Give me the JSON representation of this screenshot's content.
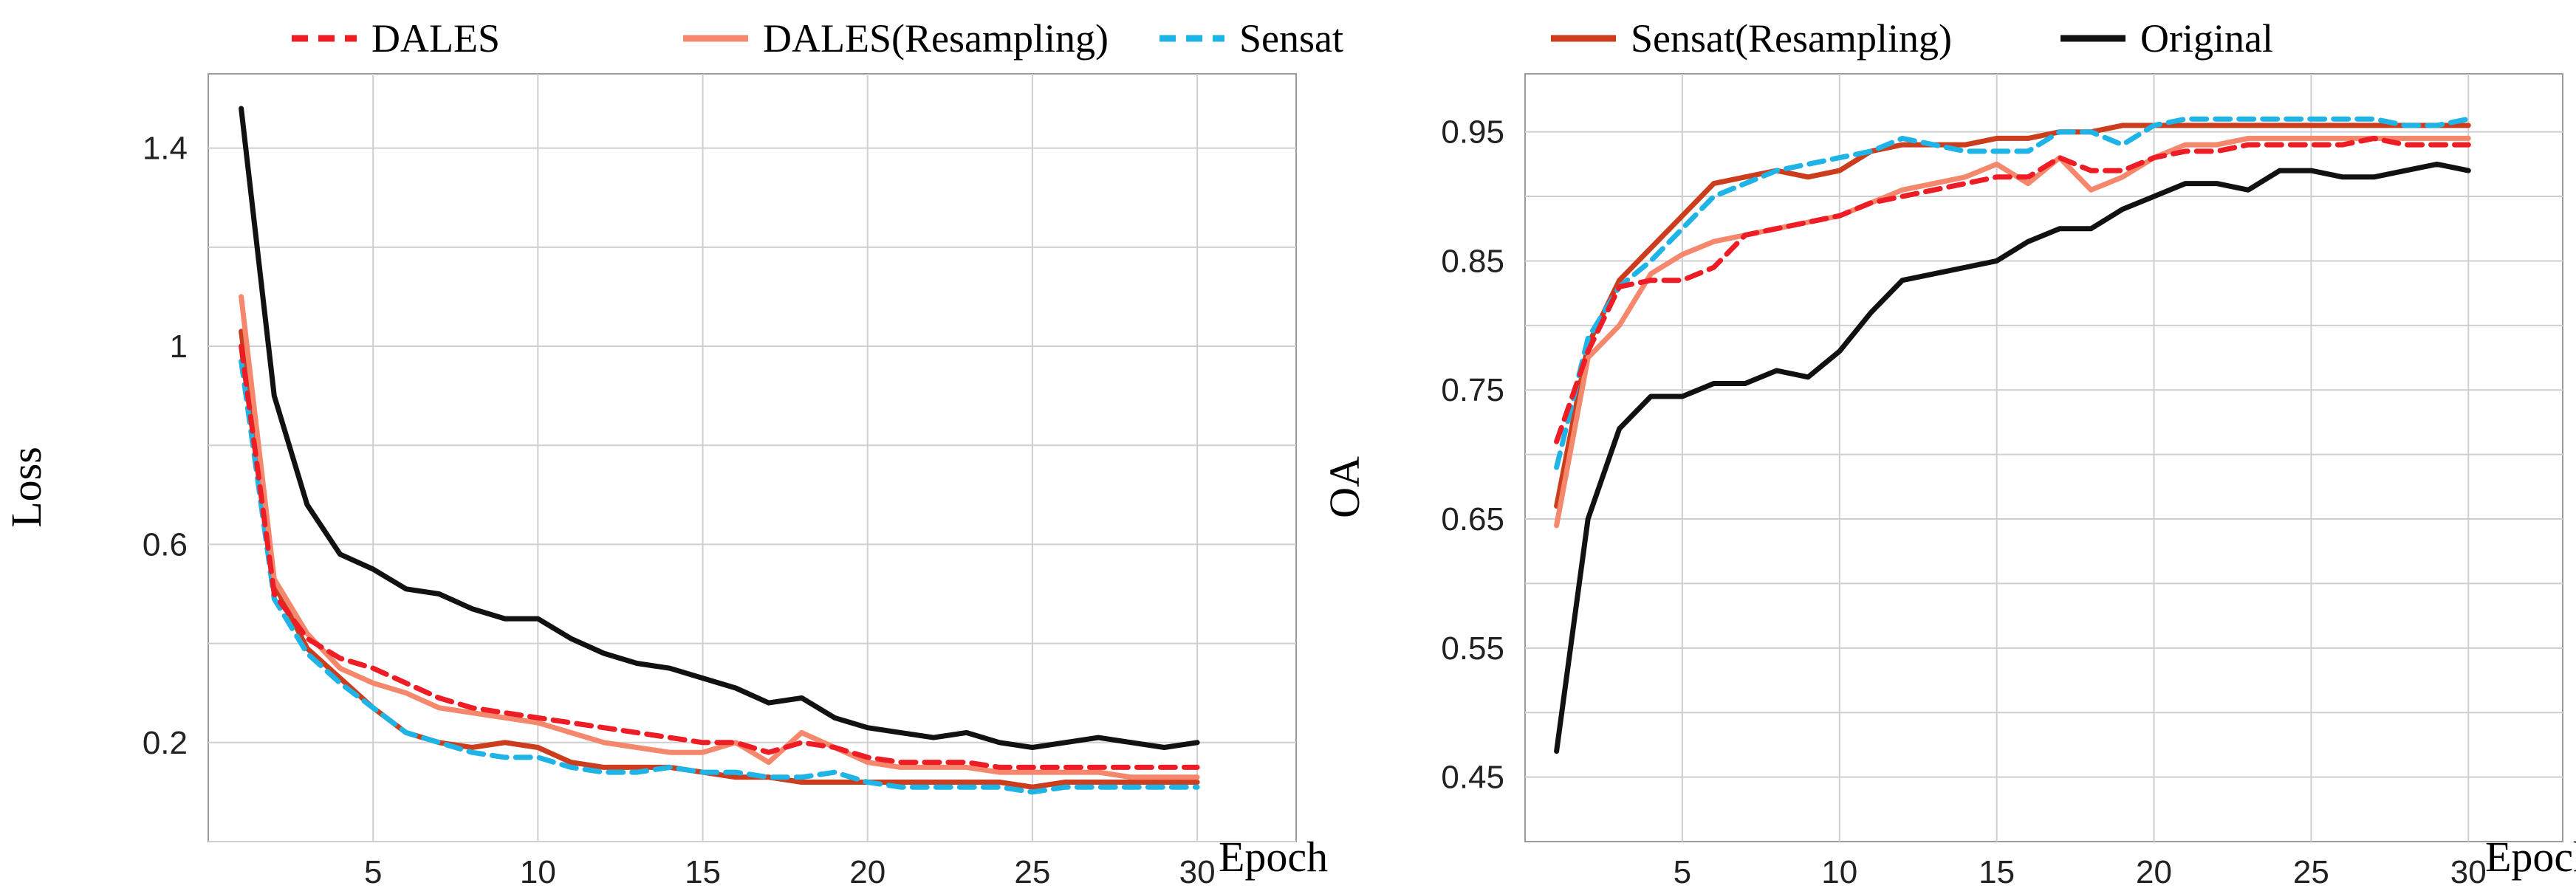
{
  "legend": [
    {
      "name": "DALES",
      "color": "#ee1c25",
      "dash": true
    },
    {
      "name": "DALES(Resampling)",
      "color": "#f4876c",
      "dash": false
    },
    {
      "name": "Sensat",
      "color": "#1fb4e6",
      "dash": true
    },
    {
      "name": "Sensat(Resampling)",
      "color": "#cc3d1d",
      "dash": false
    },
    {
      "name": "Original",
      "color": "#111111",
      "dash": false
    }
  ],
  "chart_data": [
    {
      "type": "line",
      "id": "loss",
      "ylabel": "Loss",
      "xlabel": "Epoch",
      "xlim": [
        0,
        33
      ],
      "ylim": [
        0,
        1.55
      ],
      "xticks": [
        5,
        10,
        15,
        20,
        25,
        30
      ],
      "xtick_labels": [
        "5",
        "10",
        "15",
        "20",
        "25",
        "30"
      ],
      "yticks": [
        0.2,
        0.6,
        1.0,
        1.4
      ],
      "ytick_labels": [
        "0.2",
        "0.6",
        "1",
        "1.4"
      ],
      "ygrid": [
        0.0,
        0.2,
        0.4,
        0.6,
        0.8,
        1.0,
        1.2,
        1.4
      ],
      "x": [
        1,
        2,
        3,
        4,
        5,
        6,
        7,
        8,
        9,
        10,
        11,
        12,
        13,
        14,
        15,
        16,
        17,
        18,
        19,
        20,
        21,
        22,
        23,
        24,
        25,
        26,
        27,
        28,
        29,
        30
      ],
      "series": [
        {
          "name": "Original",
          "values": [
            1.48,
            0.9,
            0.68,
            0.58,
            0.55,
            0.51,
            0.5,
            0.47,
            0.45,
            0.45,
            0.41,
            0.38,
            0.36,
            0.35,
            0.33,
            0.31,
            0.28,
            0.29,
            0.25,
            0.23,
            0.22,
            0.21,
            0.22,
            0.2,
            0.19,
            0.2,
            0.21,
            0.2,
            0.19,
            0.2
          ]
        },
        {
          "name": "DALES",
          "values": [
            1.0,
            0.5,
            0.41,
            0.37,
            0.35,
            0.32,
            0.29,
            0.27,
            0.26,
            0.25,
            0.24,
            0.23,
            0.22,
            0.21,
            0.2,
            0.2,
            0.18,
            0.2,
            0.19,
            0.17,
            0.16,
            0.16,
            0.16,
            0.15,
            0.15,
            0.15,
            0.15,
            0.15,
            0.15,
            0.15
          ]
        },
        {
          "name": "DALES(Resampling)",
          "values": [
            1.1,
            0.53,
            0.42,
            0.35,
            0.32,
            0.3,
            0.27,
            0.26,
            0.25,
            0.24,
            0.22,
            0.2,
            0.19,
            0.18,
            0.18,
            0.2,
            0.16,
            0.22,
            0.19,
            0.16,
            0.15,
            0.15,
            0.15,
            0.14,
            0.14,
            0.14,
            0.14,
            0.13,
            0.13,
            0.13
          ]
        },
        {
          "name": "Sensat",
          "values": [
            0.97,
            0.49,
            0.38,
            0.32,
            0.27,
            0.22,
            0.2,
            0.18,
            0.17,
            0.17,
            0.15,
            0.14,
            0.14,
            0.15,
            0.14,
            0.14,
            0.13,
            0.13,
            0.14,
            0.12,
            0.11,
            0.11,
            0.11,
            0.11,
            0.1,
            0.11,
            0.11,
            0.11,
            0.11,
            0.11
          ]
        },
        {
          "name": "Sensat(Resampling)",
          "values": [
            1.03,
            0.52,
            0.39,
            0.33,
            0.27,
            0.22,
            0.2,
            0.19,
            0.2,
            0.19,
            0.16,
            0.15,
            0.15,
            0.15,
            0.14,
            0.13,
            0.13,
            0.12,
            0.12,
            0.12,
            0.12,
            0.12,
            0.12,
            0.12,
            0.11,
            0.12,
            0.12,
            0.12,
            0.12,
            0.12
          ]
        }
      ]
    },
    {
      "type": "line",
      "id": "oa",
      "ylabel": "OA",
      "xlabel": "Epoch",
      "xlim": [
        0,
        33
      ],
      "ylim": [
        0.4,
        0.995
      ],
      "xticks": [
        5,
        10,
        15,
        20,
        25,
        30
      ],
      "xtick_labels": [
        "5",
        "10",
        "15",
        "20",
        "25",
        "30"
      ],
      "yticks": [
        0.45,
        0.55,
        0.65,
        0.75,
        0.85,
        0.95
      ],
      "ytick_labels": [
        "0.45",
        "0.55",
        "0.65",
        "0.75",
        "0.85",
        "0.95"
      ],
      "ygrid": [
        0.45,
        0.5,
        0.55,
        0.6,
        0.65,
        0.7,
        0.75,
        0.8,
        0.85,
        0.9,
        0.95
      ],
      "x": [
        1,
        2,
        3,
        4,
        5,
        6,
        7,
        8,
        9,
        10,
        11,
        12,
        13,
        14,
        15,
        16,
        17,
        18,
        19,
        20,
        21,
        22,
        23,
        24,
        25,
        26,
        27,
        28,
        29,
        30
      ],
      "series": [
        {
          "name": "Original",
          "values": [
            0.47,
            0.65,
            0.72,
            0.745,
            0.745,
            0.755,
            0.755,
            0.765,
            0.76,
            0.78,
            0.81,
            0.835,
            0.84,
            0.845,
            0.85,
            0.865,
            0.875,
            0.875,
            0.89,
            0.9,
            0.91,
            0.91,
            0.905,
            0.92,
            0.92,
            0.915,
            0.915,
            0.92,
            0.925,
            0.92
          ]
        },
        {
          "name": "DALES",
          "values": [
            0.71,
            0.78,
            0.83,
            0.835,
            0.835,
            0.845,
            0.87,
            0.875,
            0.88,
            0.885,
            0.895,
            0.9,
            0.905,
            0.91,
            0.915,
            0.915,
            0.93,
            0.92,
            0.92,
            0.93,
            0.935,
            0.935,
            0.94,
            0.94,
            0.94,
            0.94,
            0.945,
            0.94,
            0.94,
            0.94
          ]
        },
        {
          "name": "DALES(Resampling)",
          "values": [
            0.645,
            0.775,
            0.8,
            0.84,
            0.855,
            0.865,
            0.87,
            0.875,
            0.88,
            0.885,
            0.895,
            0.905,
            0.91,
            0.915,
            0.925,
            0.91,
            0.93,
            0.905,
            0.915,
            0.93,
            0.94,
            0.94,
            0.945,
            0.945,
            0.945,
            0.945,
            0.945,
            0.945,
            0.945,
            0.945
          ]
        },
        {
          "name": "Sensat",
          "values": [
            0.69,
            0.79,
            0.83,
            0.85,
            0.875,
            0.9,
            0.91,
            0.92,
            0.925,
            0.93,
            0.935,
            0.945,
            0.94,
            0.935,
            0.935,
            0.935,
            0.95,
            0.95,
            0.94,
            0.955,
            0.96,
            0.96,
            0.96,
            0.96,
            0.96,
            0.96,
            0.96,
            0.955,
            0.955,
            0.96
          ]
        },
        {
          "name": "Sensat(Resampling)",
          "values": [
            0.66,
            0.785,
            0.835,
            0.86,
            0.885,
            0.91,
            0.915,
            0.92,
            0.915,
            0.92,
            0.935,
            0.94,
            0.94,
            0.94,
            0.945,
            0.945,
            0.95,
            0.95,
            0.955,
            0.955,
            0.955,
            0.955,
            0.955,
            0.955,
            0.955,
            0.955,
            0.955,
            0.955,
            0.955,
            0.955
          ]
        }
      ]
    }
  ]
}
